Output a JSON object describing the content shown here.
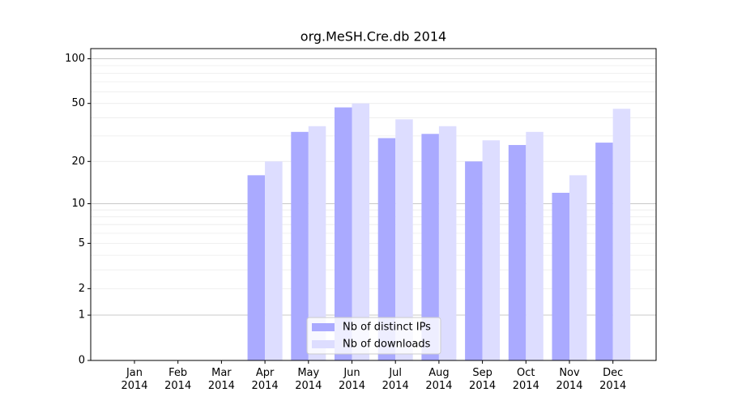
{
  "chart_data": {
    "type": "bar",
    "title": "org.MeSH.Cre.db 2014",
    "categories": [
      "Jan\n2014",
      "Feb\n2014",
      "Mar\n2014",
      "Apr\n2014",
      "May\n2014",
      "Jun\n2014",
      "Jul\n2014",
      "Aug\n2014",
      "Sep\n2014",
      "Oct\n2014",
      "Nov\n2014",
      "Dec\n2014"
    ],
    "series": [
      {
        "name": "Nb of distinct IPs",
        "color": "#aaaaff",
        "values": [
          0,
          0,
          0,
          16,
          32,
          47,
          29,
          31,
          20,
          26,
          12,
          27
        ]
      },
      {
        "name": "Nb of downloads",
        "color": "#ddddff",
        "values": [
          0,
          0,
          0,
          20,
          35,
          50,
          39,
          35,
          28,
          32,
          16,
          46
        ]
      }
    ],
    "yscale": "log1p",
    "ylim": [
      0,
      117
    ],
    "yticks": [
      0,
      1,
      2,
      5,
      10,
      20,
      50,
      100
    ],
    "major_grid": [
      1,
      10,
      100
    ],
    "minor_grid": [
      2,
      3,
      4,
      5,
      6,
      7,
      8,
      9,
      20,
      30,
      40,
      50,
      60,
      70,
      80,
      90
    ],
    "legend": "lower center"
  }
}
